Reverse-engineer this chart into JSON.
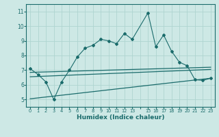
{
  "xlabel": "Humidex (Indice chaleur)",
  "background_color": "#cde8e5",
  "grid_color": "#aed4d0",
  "line_color": "#1a6b6b",
  "ylim": [
    4.5,
    11.5
  ],
  "xlim": [
    -0.5,
    23.5
  ],
  "yticks": [
    5,
    6,
    7,
    8,
    9,
    10,
    11
  ],
  "xtick_labels": [
    "0",
    "1",
    "2",
    "3",
    "4",
    "5",
    "6",
    "7",
    "8",
    "9",
    "10",
    "11",
    "12",
    "13",
    "",
    "15",
    "16",
    "17",
    "18",
    "19",
    "20",
    "21",
    "22",
    "23"
  ],
  "line1_x": [
    0,
    1,
    2,
    3,
    4,
    5,
    6,
    7,
    8,
    9,
    10,
    11,
    12,
    13,
    15,
    16,
    17,
    18,
    19,
    20,
    21,
    22,
    23
  ],
  "line1_y": [
    7.1,
    6.7,
    6.2,
    5.0,
    6.2,
    7.0,
    7.9,
    8.5,
    8.7,
    9.1,
    9.0,
    8.8,
    9.5,
    9.1,
    10.9,
    8.6,
    9.4,
    8.3,
    7.55,
    7.3,
    6.35,
    6.3,
    6.45
  ],
  "line2_x": [
    0,
    23
  ],
  "line2_y": [
    6.85,
    7.2
  ],
  "line3_x": [
    0,
    23
  ],
  "line3_y": [
    6.55,
    7.05
  ],
  "line4_x": [
    0,
    23
  ],
  "line4_y": [
    5.05,
    6.45
  ]
}
